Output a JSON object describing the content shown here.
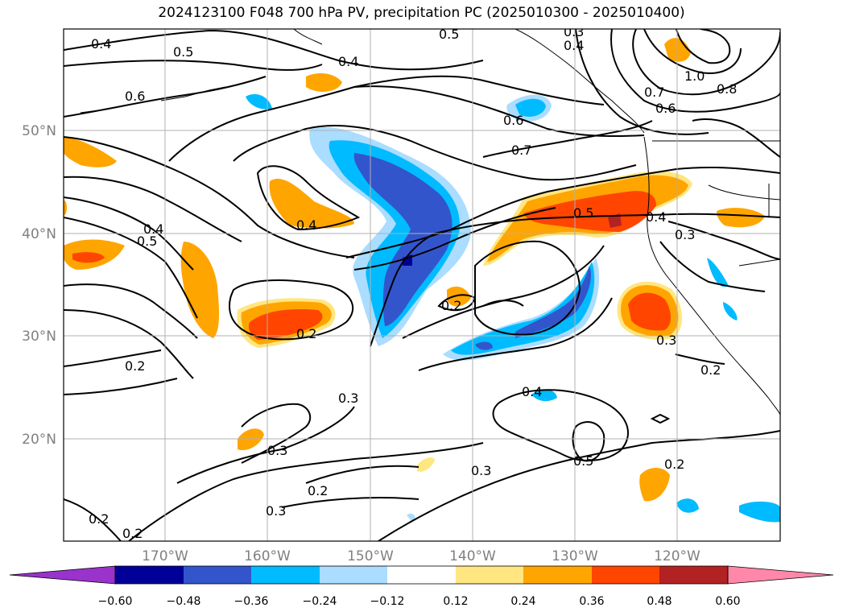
{
  "title": "2024123100 F048 700 hPa PV, precipitation PC (2025010300 - 2025010400)",
  "lat_labels": [
    "50°N",
    "40°N",
    "30°N",
    "20°N"
  ],
  "lon_labels": [
    "170°W",
    "160°W",
    "150°W",
    "140°W",
    "130°W",
    "120°W"
  ],
  "contour_labels": [
    "0.4",
    "0.5",
    "0.4",
    "0.5",
    "0.3",
    "0.4",
    "1.0",
    "0.8",
    "0.7",
    "0.6",
    "0.6",
    "0.7",
    "0.6",
    "0.4",
    "0.5",
    "0.4",
    "0.3",
    "0.4",
    "0.5",
    "0.2",
    "0.2",
    "0.3",
    "0.2",
    "0.2",
    "0.4",
    "0.3",
    "0.3",
    "0.2",
    "0.3",
    "0.5",
    "0.3",
    "0.2",
    "0.2",
    "0.2"
  ],
  "colorbar": {
    "ticks": [
      "−0.60",
      "−0.48",
      "−0.36",
      "−0.24",
      "−0.12",
      "0.12",
      "0.24",
      "0.36",
      "0.48",
      "0.60"
    ],
    "colors": [
      "#9933cc",
      "#000099",
      "#3355cc",
      "#00bbff",
      "#aaddff",
      "#ffffff",
      "#ffe680",
      "#ffa500",
      "#ff4500",
      "#b22222",
      "#ff88aa"
    ]
  }
}
